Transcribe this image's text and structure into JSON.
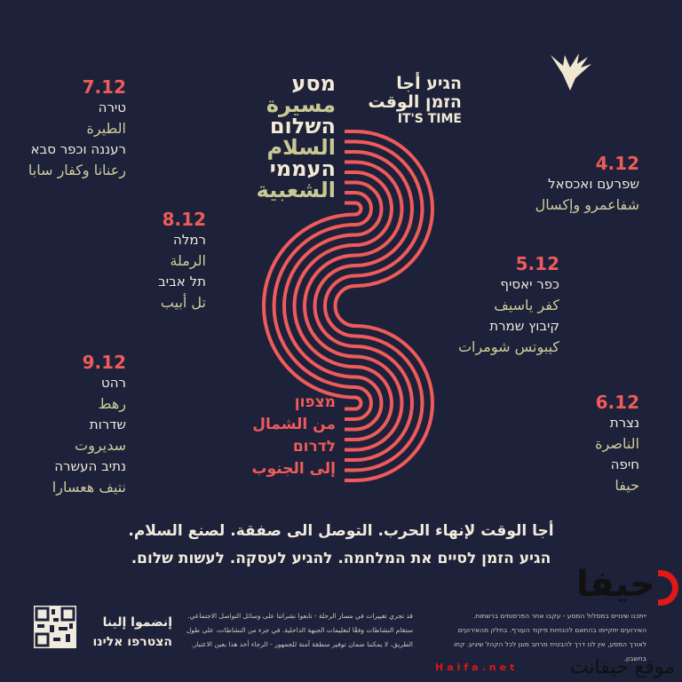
{
  "colors": {
    "background": "#1d2139",
    "accent": "#ef5b5b",
    "hebrew_text": "#f1ebdd",
    "arabic_text": "#cdcc9c"
  },
  "logo": {
    "line1": "הגיע أجا",
    "line2": "הזמן الوقت",
    "line3": "IT'S TIME",
    "icon": "dove-hands-icon"
  },
  "title": {
    "lines": [
      "מסע",
      "مسيرة",
      "השלום",
      "السلام",
      "העממי",
      "الشعبية"
    ]
  },
  "direction": {
    "lines": [
      "מצפון",
      "من الشمال",
      "לדרום",
      "إلى الجنوب"
    ]
  },
  "stops": [
    {
      "date": "4.12",
      "places": [
        "שפרעם ואכסאל",
        "شفاعمرو وإكسال"
      ]
    },
    {
      "date": "5.12",
      "places": [
        "כפר יאסיף",
        "كفر ياسيف",
        "קיבוץ שמרת",
        "كيبوتس شومرات"
      ]
    },
    {
      "date": "6.12",
      "places": [
        "נצרת",
        "الناصرة",
        "חיפה",
        "حيفا"
      ]
    },
    {
      "date": "7.12",
      "places": [
        "טירה",
        "الطيرة",
        "רעננה וכפר סבא",
        "رعنانا وكفار سابا"
      ]
    },
    {
      "date": "8.12",
      "places": [
        "רמלה",
        "الرملة",
        "תל אביב",
        "تل أبيب"
      ]
    },
    {
      "date": "9.12",
      "places": [
        "רהט",
        "رهط",
        "שדרות",
        "سديروت",
        "נתיב העשרה",
        "نتيف هعسارا"
      ]
    }
  ],
  "slogan": {
    "arabic": "أجا الوقت لإنهاء الحرب. التوصل الى صفقة. لصنع السلام.",
    "hebrew": "הגיע הזמן לסיים את המלחמה. להגיע לעסקה. לעשות שלום."
  },
  "footer": {
    "join_ar": "إنضموا إلينا",
    "join_he": "הצטרפו אלינו",
    "qr_icon": "qr-code-icon",
    "note_ar": [
      "قد تجري تغييرات في مسار الرحلة - تابعوا نشراتنا على وسائل التواصل الاجتماعي.",
      "ستقام النشاطات وفقًا لتعليمات الجبهة الداخلية. في جزء من النشاطات، على طول",
      "الطريق، لا يمكننا ضمان توفير منطقة آمنة للجمهور - الرجاء أخذ هذا بعين الاعتبار."
    ],
    "note_he": [
      "ייתכנו שינויים במסלול המסע - עקבו אחר הפרסומים ברשתות.",
      "האירועים יתקיימו בהתאם להנחיות פיקוד העורף. בחלק מהאירועים",
      "לאורך המסע, אין לנו דרך להבטיח מרחב מוגן לכל הקהל שיגיע. קחו בחשבון."
    ]
  },
  "watermark": {
    "text": "حيفا",
    "sub": "موقع حيفانت",
    "latin": "Haifa.net"
  }
}
